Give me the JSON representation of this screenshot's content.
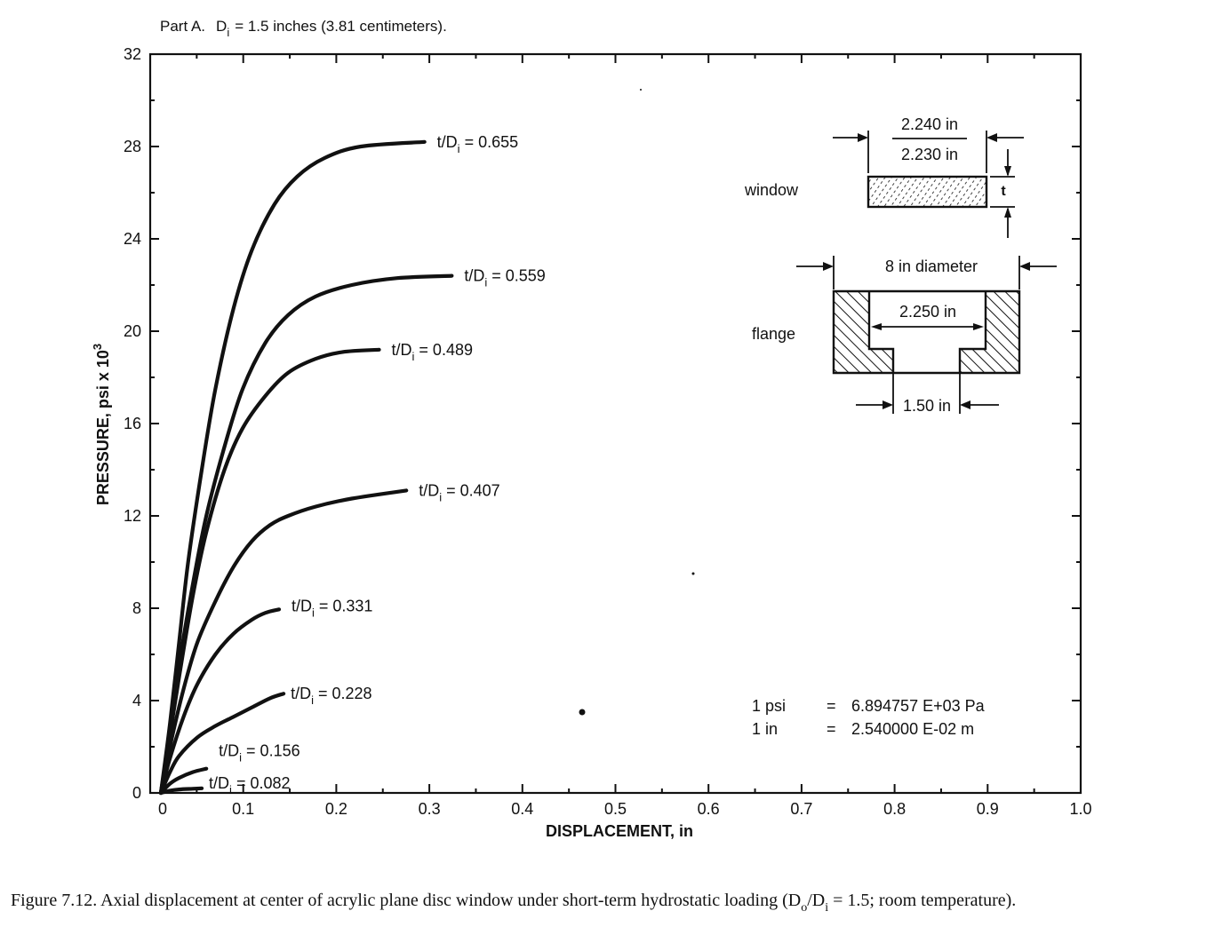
{
  "figure": {
    "part_title": "Part A.",
    "part_di_label": "D",
    "part_di_sub": "i",
    "part_di_rest": "= 1.5 inches (3.81 centimeters).",
    "caption_main": "Figure 7.12.  Axial displacement at center of acrylic plane disc window under short-term hydrostatic loading (D",
    "caption_sub_o": "o",
    "caption_slash": "/D",
    "caption_sub_i": "i",
    "caption_tail": " = 1.5; room temperature)."
  },
  "inset": {
    "window_label": "window",
    "window_dim_top": "2.240 in",
    "window_dim_bottom": "2.230 in",
    "window_t": "t",
    "flange_label": "flange",
    "flange_diameter": "8 in diameter",
    "flange_inner": "2.250 in",
    "flange_hole": "1.50 in"
  },
  "conversions": [
    {
      "unit": "1 psi",
      "eq": "=",
      "value": "6.894757 E+03 Pa"
    },
    {
      "unit": "1 in",
      "eq": "=",
      "value": "2.540000 E-02 m"
    }
  ],
  "chart_data": {
    "type": "line",
    "xlabel": "DISPLACEMENT, in",
    "ylabel": "PRESSURE, psi x 10",
    "ylabel_sup": "3",
    "xlim": [
      0,
      1.0
    ],
    "ylim": [
      0,
      32
    ],
    "x_ticks": [
      "0",
      "0.1",
      "0.2",
      "0.3",
      "0.4",
      "0.5",
      "0.6",
      "0.7",
      "0.8",
      "0.9",
      "1.0"
    ],
    "y_ticks": [
      "0",
      "4",
      "8",
      "12",
      "16",
      "20",
      "24",
      "28",
      "32"
    ],
    "grid": false,
    "series": [
      {
        "name": "t/Di = 0.655",
        "label_prefix": "t/D",
        "label_sub": "i",
        "label_value": "= 0.655",
        "points": [
          [
            0,
            0
          ],
          [
            0.01,
            3
          ],
          [
            0.02,
            6.5
          ],
          [
            0.03,
            10
          ],
          [
            0.045,
            14
          ],
          [
            0.06,
            17.5
          ],
          [
            0.08,
            21
          ],
          [
            0.1,
            23.5
          ],
          [
            0.125,
            25.5
          ],
          [
            0.15,
            26.7
          ],
          [
            0.18,
            27.5
          ],
          [
            0.22,
            28
          ],
          [
            0.29,
            28.2
          ]
        ]
      },
      {
        "name": "t/Di = 0.559",
        "label_prefix": "t/D",
        "label_sub": "i",
        "label_value": "= 0.559",
        "points": [
          [
            0,
            0
          ],
          [
            0.01,
            2.5
          ],
          [
            0.02,
            5.5
          ],
          [
            0.035,
            9
          ],
          [
            0.05,
            12
          ],
          [
            0.07,
            15
          ],
          [
            0.09,
            17.5
          ],
          [
            0.115,
            19.5
          ],
          [
            0.14,
            20.7
          ],
          [
            0.17,
            21.5
          ],
          [
            0.21,
            22
          ],
          [
            0.26,
            22.3
          ],
          [
            0.32,
            22.4
          ]
        ]
      },
      {
        "name": "t/Di = 0.489",
        "label_prefix": "t/D",
        "label_sub": "i",
        "label_value": "= 0.489",
        "points": [
          [
            0,
            0
          ],
          [
            0.01,
            2.5
          ],
          [
            0.02,
            5
          ],
          [
            0.035,
            8.5
          ],
          [
            0.05,
            11.3
          ],
          [
            0.07,
            14
          ],
          [
            0.09,
            15.8
          ],
          [
            0.115,
            17.2
          ],
          [
            0.14,
            18.2
          ],
          [
            0.17,
            18.8
          ],
          [
            0.2,
            19.1
          ],
          [
            0.24,
            19.2
          ]
        ]
      },
      {
        "name": "t/Di = 0.407",
        "label_prefix": "t/D",
        "label_sub": "i",
        "label_value": "= 0.407",
        "points": [
          [
            0,
            0
          ],
          [
            0.01,
            2
          ],
          [
            0.025,
            4.5
          ],
          [
            0.04,
            6.5
          ],
          [
            0.06,
            8.3
          ],
          [
            0.08,
            9.8
          ],
          [
            0.1,
            10.9
          ],
          [
            0.12,
            11.6
          ],
          [
            0.14,
            12
          ],
          [
            0.17,
            12.4
          ],
          [
            0.21,
            12.75
          ],
          [
            0.27,
            13.1
          ]
        ]
      },
      {
        "name": "t/Di = 0.331",
        "label_prefix": "t/D",
        "label_sub": "i",
        "label_value": "= 0.331",
        "points": [
          [
            0,
            0
          ],
          [
            0.01,
            1.5
          ],
          [
            0.025,
            3.3
          ],
          [
            0.04,
            4.7
          ],
          [
            0.06,
            6
          ],
          [
            0.08,
            6.9
          ],
          [
            0.1,
            7.5
          ],
          [
            0.115,
            7.8
          ],
          [
            0.13,
            7.95
          ]
        ]
      },
      {
        "name": "t/Di = 0.228",
        "label_prefix": "t/D",
        "label_sub": "i",
        "label_value": "= 0.228",
        "points": [
          [
            0,
            0
          ],
          [
            0.01,
            0.9
          ],
          [
            0.02,
            1.6
          ],
          [
            0.04,
            2.4
          ],
          [
            0.06,
            2.9
          ],
          [
            0.08,
            3.3
          ],
          [
            0.1,
            3.7
          ],
          [
            0.12,
            4.1
          ],
          [
            0.135,
            4.3
          ]
        ]
      },
      {
        "name": "t/Di = 0.156",
        "label_prefix": "t/D",
        "label_sub": "i",
        "label_value": "= 0.156",
        "points": [
          [
            0,
            0
          ],
          [
            0.01,
            0.4
          ],
          [
            0.02,
            0.65
          ],
          [
            0.035,
            0.9
          ],
          [
            0.05,
            1.05
          ]
        ]
      },
      {
        "name": "t/Di = 0.082",
        "label_prefix": "t/D",
        "label_sub": "i",
        "label_value": "= 0.082",
        "points": [
          [
            0,
            0
          ],
          [
            0.01,
            0.1
          ],
          [
            0.02,
            0.15
          ],
          [
            0.035,
            0.18
          ],
          [
            0.045,
            0.2
          ]
        ]
      }
    ]
  }
}
